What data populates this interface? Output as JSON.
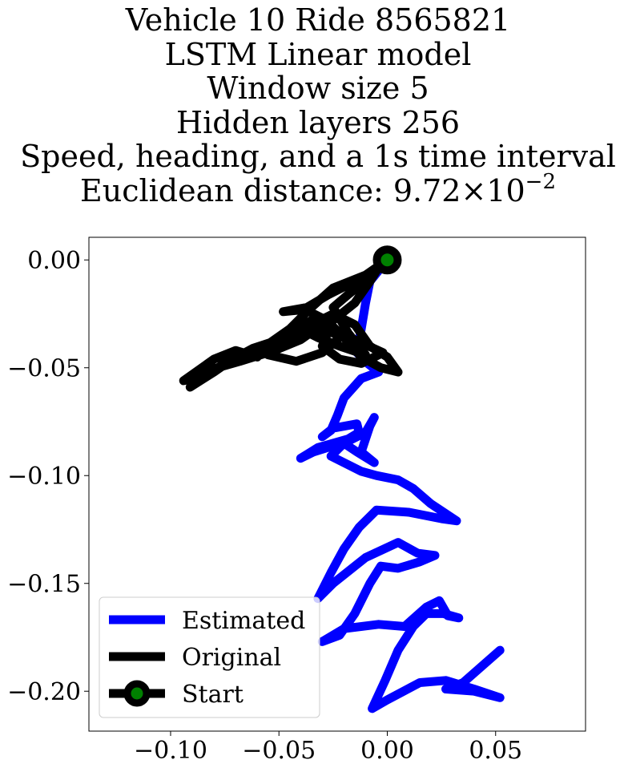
{
  "chart_data": {
    "type": "line",
    "title_lines": [
      "Vehicle 10 Ride 8565821",
      "LSTM Linear model",
      "Window size 5",
      "Hidden layers 256",
      "Speed, heading, and a 1s time interval"
    ],
    "distance_label": "Euclidean distance: 9.72",
    "distance_mantissa_sep": "×",
    "distance_base": "10",
    "distance_exponent": "−2",
    "xlim": [
      -0.1377,
      0.0915
    ],
    "ylim": [
      -0.2185,
      0.0105
    ],
    "xticks": [
      {
        "value": -0.1,
        "label": "−0.10"
      },
      {
        "value": -0.05,
        "label": "−0.05"
      },
      {
        "value": 0.0,
        "label": "0.00"
      },
      {
        "value": 0.05,
        "label": "0.05"
      }
    ],
    "yticks": [
      {
        "value": 0.0,
        "label": "0.00"
      },
      {
        "value": -0.05,
        "label": "−0.05"
      },
      {
        "value": -0.1,
        "label": "−0.10"
      },
      {
        "value": -0.15,
        "label": "−0.15"
      },
      {
        "value": -0.2,
        "label": "−0.20"
      }
    ],
    "series": [
      {
        "name": "Estimated",
        "color": "#0000ff",
        "points": [
          [
            0.0,
            0.0
          ],
          [
            -0.008,
            -0.01
          ],
          [
            -0.01,
            -0.02
          ],
          [
            -0.012,
            -0.032
          ],
          [
            -0.014,
            -0.043
          ],
          [
            -0.009,
            -0.048
          ],
          [
            -0.004,
            -0.052
          ],
          [
            -0.012,
            -0.055
          ],
          [
            -0.02,
            -0.064
          ],
          [
            -0.023,
            -0.072
          ],
          [
            -0.026,
            -0.079
          ],
          [
            -0.03,
            -0.082
          ],
          [
            -0.025,
            -0.078
          ],
          [
            -0.014,
            -0.076
          ],
          [
            -0.013,
            -0.08
          ],
          [
            -0.018,
            -0.083
          ],
          [
            -0.032,
            -0.087
          ],
          [
            -0.04,
            -0.092
          ],
          [
            -0.034,
            -0.089
          ],
          [
            -0.018,
            -0.084
          ],
          [
            -0.01,
            -0.08
          ],
          [
            -0.006,
            -0.073
          ],
          [
            -0.008,
            -0.077
          ],
          [
            -0.01,
            -0.083
          ],
          [
            -0.012,
            -0.089
          ],
          [
            -0.006,
            -0.094
          ],
          [
            -0.014,
            -0.089
          ],
          [
            -0.02,
            -0.085
          ],
          [
            -0.026,
            -0.091
          ],
          [
            -0.012,
            -0.098
          ],
          [
            -0.005,
            -0.1
          ],
          [
            0.005,
            -0.102
          ],
          [
            0.012,
            -0.106
          ],
          [
            0.02,
            -0.113
          ],
          [
            0.032,
            -0.121
          ],
          [
            0.025,
            -0.12
          ],
          [
            0.01,
            -0.117
          ],
          [
            -0.005,
            -0.116
          ],
          [
            -0.013,
            -0.124
          ],
          [
            -0.02,
            -0.134
          ],
          [
            -0.026,
            -0.145
          ],
          [
            -0.032,
            -0.157
          ],
          [
            -0.025,
            -0.15
          ],
          [
            -0.01,
            -0.138
          ],
          [
            0.005,
            -0.131
          ],
          [
            0.014,
            -0.136
          ],
          [
            0.022,
            -0.137
          ],
          [
            0.015,
            -0.14
          ],
          [
            0.005,
            -0.143
          ],
          [
            -0.003,
            -0.142
          ],
          [
            -0.008,
            -0.15
          ],
          [
            -0.015,
            -0.164
          ],
          [
            -0.022,
            -0.174
          ],
          [
            -0.03,
            -0.177
          ],
          [
            -0.02,
            -0.171
          ],
          [
            -0.004,
            -0.169
          ],
          [
            0.008,
            -0.17
          ],
          [
            0.018,
            -0.161
          ],
          [
            0.024,
            -0.158
          ],
          [
            0.028,
            -0.165
          ],
          [
            0.033,
            -0.166
          ],
          [
            0.026,
            -0.164
          ],
          [
            0.018,
            -0.164
          ],
          [
            0.012,
            -0.17
          ],
          [
            0.005,
            -0.181
          ],
          [
            -0.001,
            -0.195
          ],
          [
            -0.007,
            -0.208
          ],
          [
            0.0,
            -0.204
          ],
          [
            0.015,
            -0.196
          ],
          [
            0.027,
            -0.195
          ],
          [
            0.04,
            -0.199
          ],
          [
            0.052,
            -0.203
          ],
          [
            0.04,
            -0.2
          ],
          [
            0.027,
            -0.199
          ],
          [
            0.035,
            -0.196
          ],
          [
            0.052,
            -0.181
          ]
        ]
      },
      {
        "name": "Original",
        "color": "#000000",
        "points": [
          [
            0.0,
            0.0
          ],
          [
            -0.01,
            -0.007
          ],
          [
            -0.025,
            -0.013
          ],
          [
            -0.035,
            -0.022
          ],
          [
            -0.045,
            -0.032
          ],
          [
            -0.055,
            -0.039
          ],
          [
            -0.06,
            -0.045
          ],
          [
            -0.07,
            -0.042
          ],
          [
            -0.08,
            -0.046
          ],
          [
            -0.094,
            -0.056
          ],
          [
            -0.085,
            -0.054
          ],
          [
            -0.075,
            -0.048
          ],
          [
            -0.062,
            -0.041
          ],
          [
            -0.05,
            -0.037
          ],
          [
            -0.043,
            -0.033
          ],
          [
            -0.035,
            -0.028
          ],
          [
            -0.03,
            -0.03
          ],
          [
            -0.04,
            -0.037
          ],
          [
            -0.052,
            -0.042
          ],
          [
            -0.068,
            -0.047
          ],
          [
            -0.082,
            -0.051
          ],
          [
            -0.091,
            -0.059
          ],
          [
            -0.08,
            -0.052
          ],
          [
            -0.07,
            -0.045
          ],
          [
            -0.058,
            -0.04
          ],
          [
            -0.045,
            -0.036
          ],
          [
            -0.035,
            -0.032
          ],
          [
            -0.025,
            -0.028
          ],
          [
            -0.015,
            -0.02
          ],
          [
            -0.008,
            -0.01
          ],
          [
            -0.005,
            -0.005
          ],
          [
            -0.015,
            -0.01
          ],
          [
            -0.027,
            -0.016
          ],
          [
            -0.037,
            -0.022
          ],
          [
            -0.048,
            -0.024
          ],
          [
            -0.038,
            -0.023
          ],
          [
            -0.028,
            -0.028
          ],
          [
            -0.022,
            -0.036
          ],
          [
            -0.03,
            -0.043
          ],
          [
            -0.042,
            -0.047
          ],
          [
            -0.055,
            -0.044
          ],
          [
            -0.045,
            -0.037
          ],
          [
            -0.035,
            -0.03
          ],
          [
            -0.025,
            -0.025
          ],
          [
            -0.015,
            -0.03
          ],
          [
            -0.008,
            -0.04
          ],
          [
            0.0,
            -0.045
          ],
          [
            0.005,
            -0.052
          ],
          [
            -0.003,
            -0.05
          ],
          [
            -0.012,
            -0.045
          ],
          [
            -0.02,
            -0.036
          ],
          [
            -0.026,
            -0.03
          ],
          [
            -0.03,
            -0.04
          ],
          [
            -0.022,
            -0.046
          ],
          [
            -0.012,
            -0.048
          ],
          [
            -0.002,
            -0.043
          ],
          [
            -0.015,
            -0.037
          ],
          [
            -0.028,
            -0.033
          ],
          [
            -0.04,
            -0.032
          ],
          [
            -0.032,
            -0.036
          ],
          [
            -0.022,
            -0.04
          ],
          [
            -0.01,
            -0.044
          ],
          [
            -0.018,
            -0.034
          ],
          [
            -0.025,
            -0.022
          ],
          [
            -0.018,
            -0.016
          ],
          [
            -0.008,
            -0.008
          ],
          [
            0.0,
            0.0
          ]
        ]
      }
    ],
    "start": {
      "name": "Start",
      "x": 0.0,
      "y": 0.0,
      "marker_fill": "#008000",
      "marker_edge": "#000000"
    },
    "legend": {
      "location": "lower-left",
      "entries": [
        "Estimated",
        "Original",
        "Start"
      ]
    },
    "grid": false
  }
}
